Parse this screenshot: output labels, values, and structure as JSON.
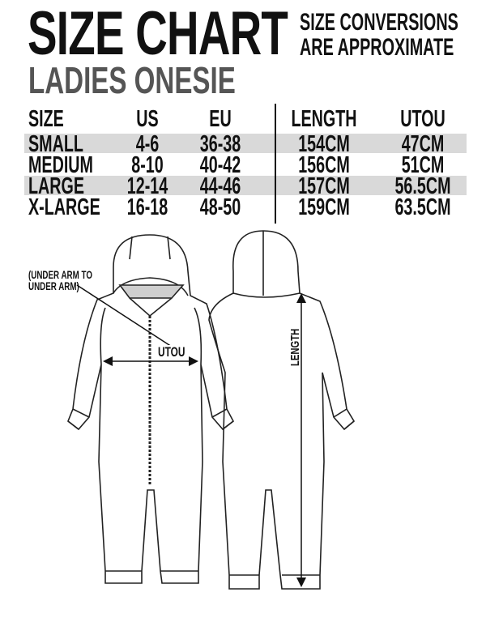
{
  "title": "SIZE CHART",
  "subtitle": "LADIES ONESIE",
  "note": [
    "SIZE CONVERSIONS",
    "ARE APPROXIMATE"
  ],
  "table": {
    "headers": [
      "SIZE",
      "US",
      "EU",
      "LENGTH",
      "UTOU"
    ],
    "rows": [
      [
        "SMALL",
        "4-6",
        "36-38",
        "154CM",
        "47CM"
      ],
      [
        "MEDIUM",
        "8-10",
        "40-42",
        "156CM",
        "51CM"
      ],
      [
        "LARGE",
        "12-14",
        "44-46",
        "157CM",
        "56.5CM"
      ],
      [
        "X-LARGE",
        "16-18",
        "48-50",
        "159CM",
        "63.5CM"
      ]
    ],
    "band_color": "#d9d9d9"
  },
  "diagram": {
    "annotation": [
      "(UNDER ARM TO",
      "UNDER ARM)"
    ],
    "utou_label": "UTOU",
    "length_label": "LENGTH"
  }
}
